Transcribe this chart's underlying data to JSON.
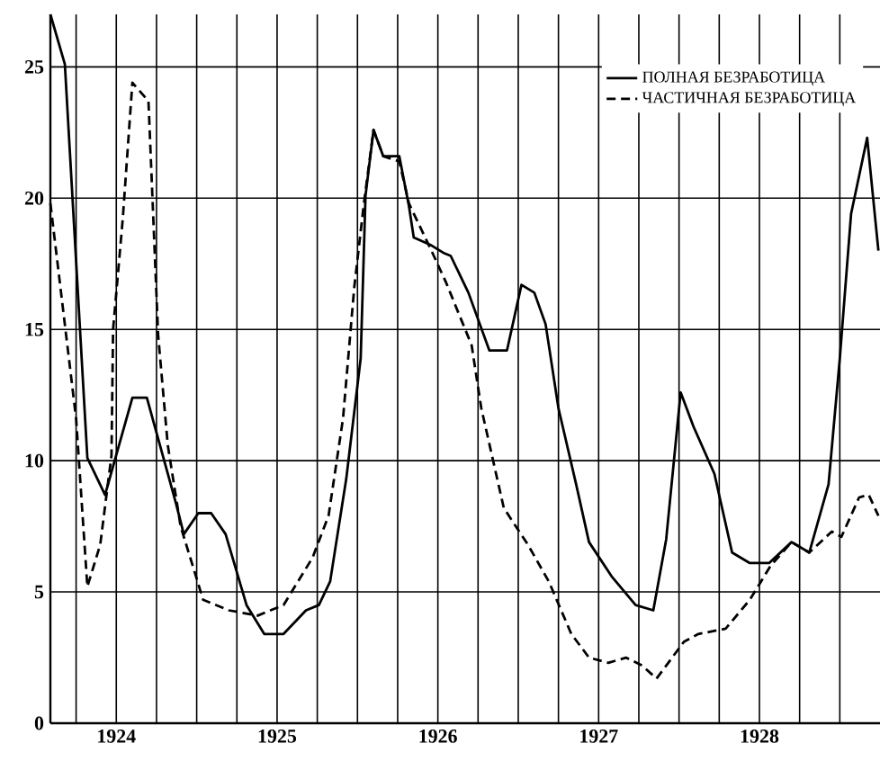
{
  "chart_data": {
    "type": "line",
    "legend": "top right",
    "grid": true,
    "marker": "none",
    "xlim": [
      1923.59,
      1928.75
    ],
    "ylim": [
      0,
      27
    ],
    "xticks": [
      {
        "value": 1923.75,
        "label": null
      },
      {
        "value": 1924,
        "label": "1924"
      },
      {
        "value": 1924.25,
        "label": null
      },
      {
        "value": 1924.5,
        "label": null
      },
      {
        "value": 1924.75,
        "label": null
      },
      {
        "value": 1925,
        "label": "1925"
      },
      {
        "value": 1925.25,
        "label": null
      },
      {
        "value": 1925.5,
        "label": null
      },
      {
        "value": 1925.75,
        "label": null
      },
      {
        "value": 1926,
        "label": "1926"
      },
      {
        "value": 1926.25,
        "label": null
      },
      {
        "value": 1926.5,
        "label": null
      },
      {
        "value": 1926.75,
        "label": null
      },
      {
        "value": 1927,
        "label": "1927"
      },
      {
        "value": 1927.25,
        "label": null
      },
      {
        "value": 1927.5,
        "label": null
      },
      {
        "value": 1927.75,
        "label": null
      },
      {
        "value": 1928,
        "label": "1928"
      },
      {
        "value": 1928.25,
        "label": null
      },
      {
        "value": 1928.5,
        "label": null
      }
    ],
    "yticks": [
      0,
      5,
      10,
      15,
      20,
      25
    ],
    "series": [
      {
        "name": "ПОЛНАЯ  БЕЗРАБОТИЦА",
        "color": "#000000",
        "line_style": "solid",
        "x": [
          1923.59,
          1923.68,
          1923.82,
          1923.93,
          1924.1,
          1924.19,
          1924.37,
          1924.42,
          1924.51,
          1924.59,
          1924.68,
          1924.81,
          1924.92,
          1925.04,
          1925.18,
          1925.26,
          1925.33,
          1925.43,
          1925.52,
          1925.55,
          1925.6,
          1925.66,
          1925.76,
          1925.82,
          1925.85,
          1925.96,
          1926.04,
          1926.08,
          1926.19,
          1926.32,
          1926.43,
          1926.52,
          1926.6,
          1926.67,
          1926.75,
          1926.86,
          1926.94,
          1927.08,
          1927.23,
          1927.34,
          1927.42,
          1927.51,
          1927.59,
          1927.72,
          1927.83,
          1927.94,
          1928.06,
          1928.2,
          1928.31,
          1928.43,
          1928.5,
          1928.57,
          1928.67,
          1928.74
        ],
        "values": [
          27.0,
          25.1,
          10.1,
          8.7,
          12.4,
          12.4,
          8.4,
          7.2,
          8.0,
          8.0,
          7.2,
          4.5,
          3.4,
          3.4,
          4.3,
          4.5,
          5.4,
          9.3,
          13.9,
          20.1,
          22.6,
          21.6,
          21.6,
          19.7,
          18.5,
          18.2,
          17.9,
          17.8,
          16.4,
          14.2,
          14.2,
          16.7,
          16.4,
          15.2,
          12.0,
          9.1,
          6.9,
          5.6,
          4.5,
          4.3,
          7.0,
          12.6,
          11.3,
          9.5,
          6.5,
          6.1,
          6.1,
          6.9,
          6.5,
          9.1,
          13.9,
          19.4,
          22.3,
          18.0
        ]
      },
      {
        "name": "ЧАСТИЧНАЯ  БЕЗРАБОТИЦА",
        "color": "#000000",
        "line_style": "dashed",
        "x": [
          1923.59,
          1923.75,
          1923.82,
          1923.9,
          1923.97,
          1923.98,
          1924.04,
          1924.1,
          1924.2,
          1924.26,
          1924.32,
          1924.4,
          1924.54,
          1924.7,
          1924.88,
          1925.04,
          1925.22,
          1925.32,
          1925.41,
          1925.48,
          1925.54,
          1925.6,
          1925.66,
          1925.76,
          1925.82,
          1925.89,
          1925.96,
          1926.05,
          1926.11,
          1926.21,
          1926.27,
          1926.41,
          1926.56,
          1926.69,
          1926.83,
          1926.94,
          1927.06,
          1927.17,
          1927.27,
          1927.36,
          1927.53,
          1927.62,
          1927.79,
          1927.94,
          1928.07,
          1928.2,
          1928.31,
          1928.45,
          1928.51,
          1928.62,
          1928.68,
          1928.74
        ],
        "values": [
          19.8,
          11.6,
          5.2,
          6.8,
          10.2,
          15.0,
          19.2,
          24.4,
          23.7,
          14.8,
          10.6,
          7.5,
          4.7,
          4.3,
          4.1,
          4.5,
          6.3,
          7.9,
          11.6,
          16.6,
          19.8,
          22.6,
          21.6,
          21.4,
          19.8,
          18.9,
          18.0,
          16.8,
          15.9,
          14.4,
          12.0,
          8.2,
          6.8,
          5.4,
          3.4,
          2.5,
          2.3,
          2.5,
          2.2,
          1.7,
          3.1,
          3.4,
          3.6,
          4.7,
          6.0,
          6.9,
          6.5,
          7.3,
          7.1,
          8.6,
          8.7,
          7.9
        ]
      }
    ]
  }
}
